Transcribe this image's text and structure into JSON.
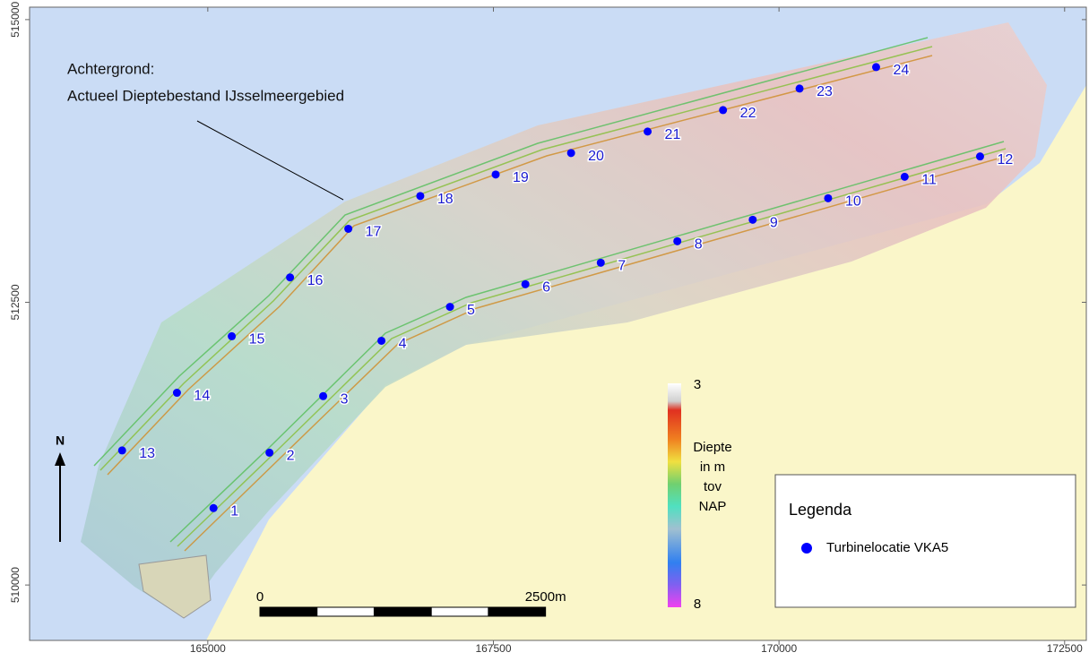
{
  "map": {
    "xlim": [
      163440,
      172690
    ],
    "ylim": [
      509510,
      515110
    ],
    "xticks": [
      165000,
      167500,
      170000,
      172500
    ],
    "yticks": [
      510000,
      512500,
      515000
    ],
    "annotation": [
      "Achtergrond:",
      "Actueel Dieptebestand IJsselmeergebied"
    ],
    "turbines": {
      "name": "Turbinelocatie VKA5",
      "color": "#0000ff",
      "labels": [
        "1",
        "2",
        "3",
        "4",
        "5",
        "6",
        "7",
        "8",
        "9",
        "10",
        "11",
        "12",
        "13",
        "14",
        "15",
        "16",
        "17",
        "18",
        "19",
        "20",
        "21",
        "22",
        "23",
        "24"
      ],
      "x": [
        165050,
        165540,
        166010,
        166520,
        167120,
        167780,
        168440,
        169110,
        169770,
        170430,
        171100,
        171760,
        164250,
        164730,
        165210,
        165720,
        166230,
        166860,
        167520,
        168180,
        168850,
        169510,
        170180,
        170850
      ],
      "y": [
        510680,
        511170,
        511670,
        512160,
        512460,
        512660,
        512850,
        513040,
        513230,
        513420,
        513610,
        513790,
        511190,
        511700,
        512200,
        512720,
        513150,
        513440,
        513630,
        513820,
        514010,
        514200,
        514390,
        514580
      ]
    },
    "colorbar": {
      "min": 3,
      "max": 8,
      "title": [
        "Diepte",
        "in m",
        "tov",
        "NAP"
      ]
    },
    "scalebar": {
      "start": 0,
      "end": {
        "value": 2500,
        "label": "2500m"
      }
    },
    "legend": {
      "title": "Legenda"
    },
    "north": "N"
  }
}
